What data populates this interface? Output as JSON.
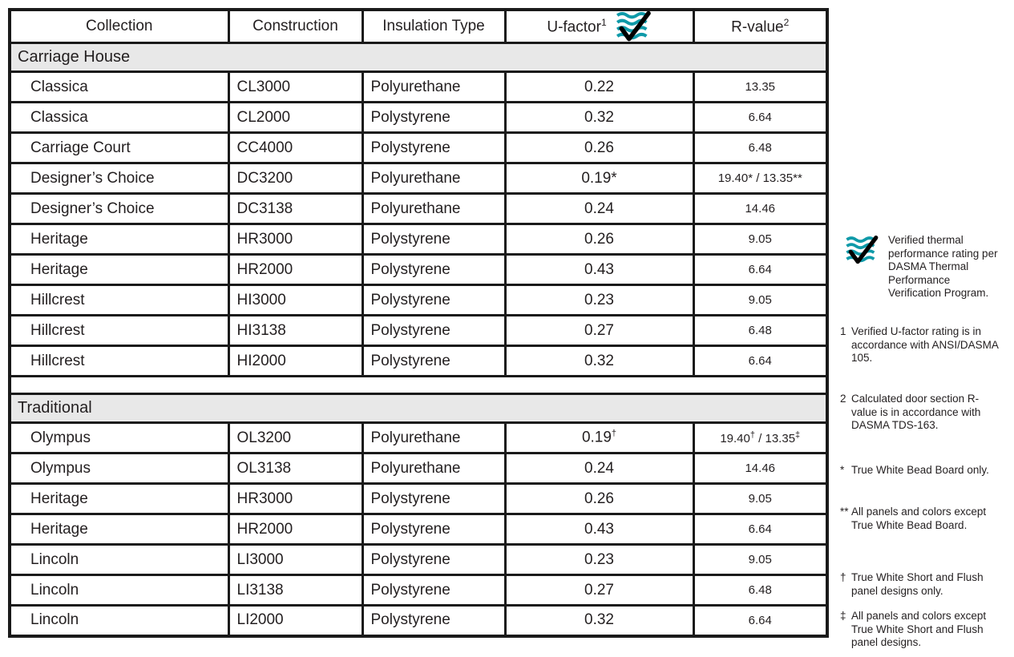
{
  "colors": {
    "accent_teal": "#0F9AA9",
    "border_black": "#1A1A1A",
    "section_gray": "#E8E8E8"
  },
  "table": {
    "header": {
      "collection": "Collection",
      "construction": "Construction",
      "insulation": "Insulation Type",
      "ufactor": "U-factor",
      "ufactor_sup": "1",
      "rvalue": "R-value",
      "rvalue_sup": "2"
    },
    "sections": [
      {
        "name": "Carriage House",
        "rows": [
          [
            "Classica",
            "CL3000",
            "Polyurethane",
            "0.22",
            "13.35"
          ],
          [
            "Classica",
            "CL2000",
            "Polystyrene",
            "0.32",
            "6.64"
          ],
          [
            "Carriage Court",
            "CC4000",
            "Polystyrene",
            "0.26",
            "6.48"
          ],
          [
            "Designer’s Choice",
            "DC3200",
            "Polyurethane",
            "0.19*",
            "19.40* / 13.35**"
          ],
          [
            "Designer’s Choice",
            "DC3138",
            "Polyurethane",
            "0.24",
            "14.46"
          ],
          [
            "Heritage",
            "HR3000",
            "Polystyrene",
            "0.26",
            "9.05"
          ],
          [
            "Heritage",
            "HR2000",
            "Polystyrene",
            "0.43",
            "6.64"
          ],
          [
            "Hillcrest",
            "HI3000",
            "Polystyrene",
            "0.23",
            "9.05"
          ],
          [
            "Hillcrest",
            "HI3138",
            "Polystyrene",
            "0.27",
            "6.48"
          ],
          [
            "Hillcrest",
            "HI2000",
            "Polystyrene",
            "0.32",
            "6.64"
          ]
        ]
      },
      {
        "name": "Traditional",
        "rows": [
          [
            "Olympus",
            "OL3200",
            "Polyurethane",
            "0.19†",
            "19.40† / 13.35‡"
          ],
          [
            "Olympus",
            "OL3138",
            "Polyurethane",
            "0.24",
            "14.46"
          ],
          [
            "Heritage",
            "HR3000",
            "Polystyrene",
            "0.26",
            "9.05"
          ],
          [
            "Heritage",
            "HR2000",
            "Polystyrene",
            "0.43",
            "6.64"
          ],
          [
            "Lincoln",
            "LI3000",
            "Polystyrene",
            "0.23",
            "9.05"
          ],
          [
            "Lincoln",
            "LI3138",
            "Polystyrene",
            "0.27",
            "6.48"
          ],
          [
            "Lincoln",
            "LI2000",
            "Polystyrene",
            "0.32",
            "6.64"
          ]
        ]
      }
    ]
  },
  "notes": {
    "verified": {
      "text": "Verified thermal performance rating per DASMA Thermal Performance Verification Program."
    },
    "n1": {
      "marker": "1",
      "text": "Verified U-factor rating is in accordance with ANSI/​DASMA 105."
    },
    "n2": {
      "marker": "2",
      "text": "Calculated door section R-value is in accordance with DASMA TDS-163."
    },
    "star": {
      "marker": "*",
      "text": "True White Bead Board only."
    },
    "dstar": {
      "marker": "**",
      "text": "All panels and colors except True White Bead Board."
    },
    "dagger": {
      "marker": "†",
      "text": "True White Short and Flush panel designs only."
    },
    "ddagger": {
      "marker": "‡",
      "text": "All panels and colors except True White Short and Flush panel designs."
    }
  }
}
